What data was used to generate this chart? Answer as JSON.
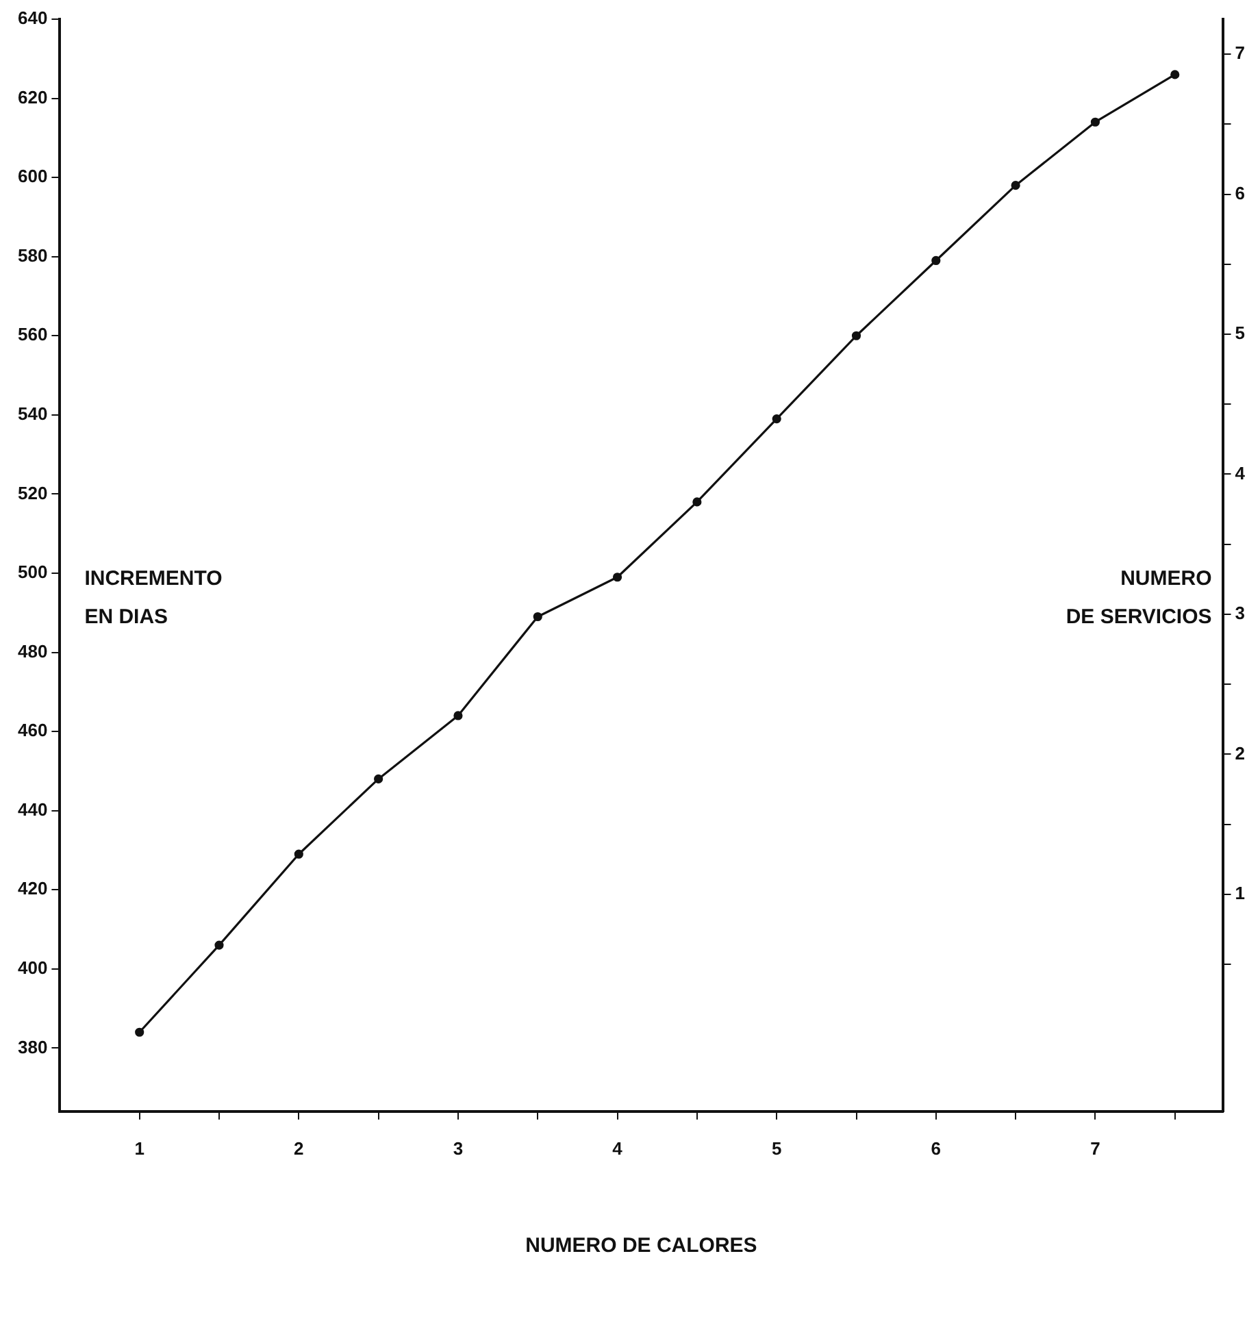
{
  "chart_data": {
    "type": "line",
    "xlabel": "NUMERO DE CALORES",
    "ylabel": "INCREMENTO EN DIAS",
    "y2label": "NUMERO DE SERVICIOS",
    "x": [
      1,
      1.5,
      2,
      2.5,
      3,
      3.5,
      4,
      4.5,
      5,
      5.5,
      6,
      6.5,
      7,
      7.5
    ],
    "series": [
      {
        "color": "#111111",
        "values": [
          384,
          406,
          429,
          448,
          464,
          489,
          499,
          518,
          539,
          560,
          579,
          598,
          614,
          626
        ]
      }
    ],
    "xlim": [
      0.5,
      7.8
    ],
    "xticks": [
      1,
      {
        "value": 1.5,
        "label": null
      },
      2,
      {
        "value": 2.5,
        "label": null
      },
      3,
      {
        "value": 3.5,
        "label": null
      },
      4,
      {
        "value": 4.5,
        "label": null
      },
      5,
      {
        "value": 5.5,
        "label": null
      },
      6,
      {
        "value": 6.5,
        "label": null
      },
      7,
      {
        "value": 7.5,
        "label": null
      }
    ],
    "ylim": [
      364,
      640
    ],
    "yticks": [
      380,
      400,
      420,
      440,
      460,
      480,
      500,
      520,
      540,
      560,
      580,
      600,
      620,
      640
    ],
    "y2lim": [
      -0.55,
      7.25
    ],
    "y2ticks": [
      {
        "value": 0.5,
        "label": null
      },
      1,
      {
        "value": 1.5,
        "label": null
      },
      2,
      {
        "value": 2.5,
        "label": null
      },
      3,
      {
        "value": 3.5,
        "label": null
      },
      4,
      {
        "value": 4.5,
        "label": null
      },
      5,
      {
        "value": 5.5,
        "label": null
      },
      6,
      {
        "value": 6.5,
        "label": null
      },
      7
    ],
    "grid": false,
    "legend": false,
    "marker": "circle",
    "line_style": "solid"
  }
}
